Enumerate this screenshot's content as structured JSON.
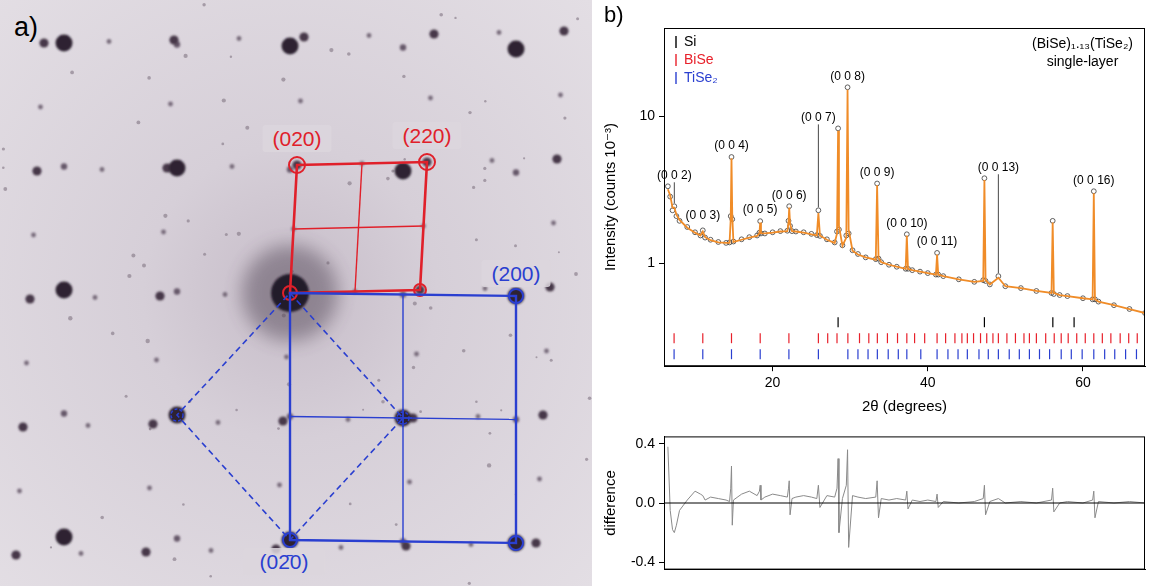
{
  "panel_a": {
    "label": "a)",
    "spot_labels": [
      {
        "text": "(020)",
        "color": "#e0202a"
      },
      {
        "text": "(220)",
        "color": "#e0202a"
      },
      {
        "text": "(200)",
        "color": "#2a3fd0"
      },
      {
        "text": "(02̄0)",
        "color": "#2a3fd0"
      }
    ]
  },
  "chart_data": [
    {
      "type": "scatter",
      "panel_label": "b)",
      "title": "(BiSe)₁.₁₃(TiSe₂)",
      "subtitle": "single-layer",
      "x_label": "2θ (degrees)",
      "y_label": "Intensity (counts 10⁻³)",
      "x": [
        6.5,
        6.8,
        7.1,
        7.33,
        7.6,
        8,
        9,
        10,
        10.7,
        11,
        11.3,
        12,
        13,
        14,
        14.45,
        14.6,
        14.7,
        14.8,
        14.95,
        16,
        17,
        18,
        18.3,
        18.4,
        18.5,
        19,
        20,
        21,
        21.9,
        22.05,
        22.14,
        22.25,
        22.5,
        23,
        24,
        25,
        25.7,
        25.9,
        26.1,
        27,
        28,
        28.3,
        28.44,
        28.55,
        29,
        29.5,
        29.66,
        29.8,
        30.3,
        31,
        32,
        33.3,
        33.47,
        33.65,
        34,
        35,
        36,
        37.15,
        37.3,
        37.45,
        38,
        39,
        40,
        41.05,
        41.2,
        41.35,
        42,
        44,
        46,
        47.15,
        47.3,
        47.45,
        48,
        49.1,
        50,
        52,
        54,
        55.95,
        56.1,
        56.25,
        57,
        58,
        60,
        61.25,
        61.4,
        61.55,
        62,
        64,
        66,
        68
      ],
      "series": [
        {
          "type": "scatter",
          "marker": "circle",
          "color": "#3a3a3a",
          "values": [
            3.35,
            2.85,
            2.3,
            2.45,
            2.1,
            1.95,
            1.77,
            1.63,
            1.55,
            1.68,
            1.5,
            1.45,
            1.4,
            1.38,
            1.39,
            2.1,
            5.3,
            2.0,
            1.41,
            1.46,
            1.51,
            1.55,
            1.62,
            1.94,
            1.6,
            1.6,
            1.63,
            1.66,
            1.67,
            1.95,
            2.45,
            1.8,
            1.66,
            1.65,
            1.63,
            1.59,
            1.56,
            2.3,
            1.54,
            1.46,
            1.39,
            1.65,
            8.3,
            1.7,
            1.33,
            1.55,
            15.8,
            1.6,
            1.23,
            1.16,
            1.1,
            1.07,
            3.5,
            1.08,
            1.02,
            0.98,
            0.95,
            0.92,
            1.58,
            0.92,
            0.9,
            0.88,
            0.86,
            0.84,
            1.18,
            0.84,
            0.82,
            0.78,
            0.75,
            0.77,
            3.8,
            0.76,
            0.72,
            0.82,
            0.7,
            0.68,
            0.65,
            0.63,
            1.95,
            0.62,
            0.61,
            0.6,
            0.58,
            0.57,
            3.1,
            0.57,
            0.55,
            0.52,
            0.49,
            0.46
          ]
        },
        {
          "type": "line",
          "line_style": "solid",
          "color": "#f08c28",
          "values": [
            3.2,
            2.9,
            2.4,
            2.4,
            2.15,
            1.98,
            1.75,
            1.62,
            1.55,
            1.65,
            1.51,
            1.44,
            1.39,
            1.38,
            1.38,
            2.0,
            5.2,
            2.1,
            1.4,
            1.45,
            1.5,
            1.54,
            1.6,
            1.9,
            1.61,
            1.6,
            1.62,
            1.65,
            1.66,
            1.9,
            2.4,
            1.85,
            1.66,
            1.65,
            1.62,
            1.58,
            1.55,
            2.2,
            1.55,
            1.45,
            1.38,
            1.6,
            8.0,
            1.8,
            1.32,
            1.5,
            15.2,
            1.7,
            1.22,
            1.15,
            1.1,
            1.06,
            3.4,
            1.1,
            1.02,
            0.98,
            0.95,
            0.92,
            1.55,
            0.92,
            0.9,
            0.88,
            0.86,
            0.84,
            1.15,
            0.84,
            0.82,
            0.78,
            0.75,
            0.76,
            3.7,
            0.77,
            0.72,
            0.8,
            0.7,
            0.68,
            0.65,
            0.63,
            1.9,
            0.63,
            0.61,
            0.6,
            0.58,
            0.57,
            3.0,
            0.57,
            0.55,
            0.52,
            0.49,
            0.46
          ]
        }
      ],
      "reflections": [
        {
          "name": "Si",
          "color": "#000000",
          "positions": [
            28.44,
            47.3,
            56.12,
            58.86
          ]
        },
        {
          "name": "BiSe",
          "color": "#e8202a",
          "positions": [
            7.3,
            11.0,
            14.7,
            18.4,
            22.1,
            25.9,
            27.1,
            28.3,
            29.7,
            31.2,
            32.4,
            33.5,
            34.8,
            36.1,
            37.3,
            38.3,
            39.6,
            41.2,
            42.3,
            43.5,
            44.4,
            45.1,
            45.9,
            46.8,
            47.6,
            48.4,
            49.1,
            50.2,
            51.3,
            52.4,
            53.1,
            54.0,
            55.2,
            56.3,
            57.2,
            58.1,
            59.2,
            60.3,
            61.4,
            62.5,
            63.6,
            64.8,
            65.9,
            67.0
          ]
        },
        {
          "name": "TiSe₂",
          "color": "#2a3fd0",
          "positions": [
            7.3,
            11.0,
            14.7,
            18.4,
            22.1,
            25.9,
            29.7,
            31.0,
            32.3,
            33.5,
            34.9,
            36.2,
            37.3,
            39.1,
            41.2,
            42.6,
            43.9,
            45.1,
            46.6,
            47.8,
            49.1,
            50.5,
            51.8,
            53.1,
            54.4,
            55.7,
            57.2,
            58.5,
            59.9,
            61.4,
            62.8,
            64.1,
            65.5,
            66.9
          ]
        }
      ],
      "peak_labels": [
        {
          "label": "(0 0 2)",
          "x": 7.33
        },
        {
          "label": "(0 0 3)",
          "x": 11
        },
        {
          "label": "(0 0 4)",
          "x": 14.7
        },
        {
          "label": "(0 0 5)",
          "x": 18.4
        },
        {
          "label": "(0 0 6)",
          "x": 22.14
        },
        {
          "label": "(0 0 7)",
          "x": 25.9
        },
        {
          "label": "(0 0 8)",
          "x": 29.66
        },
        {
          "label": "(0 0 9)",
          "x": 33.47
        },
        {
          "label": "(0 0 10)",
          "x": 37.3
        },
        {
          "label": "(0 0 11)",
          "x": 41.2
        },
        {
          "label": "(0 0 13)",
          "x": 49.1
        },
        {
          "label": "(0 0 16)",
          "x": 61.4
        }
      ],
      "legend": "upper left",
      "log": "y",
      "xlim": [
        6,
        68
      ],
      "xticks": [
        20,
        40,
        60
      ],
      "ylim": [
        0.2,
        40
      ],
      "yticks": [
        1,
        10
      ],
      "grid": false
    },
    {
      "type": "line",
      "y_label": "difference",
      "x": [
        6.5,
        6.8,
        7.1,
        7.33,
        7.6,
        8,
        9,
        10,
        10.7,
        11,
        11.3,
        12,
        13,
        14,
        14.45,
        14.6,
        14.7,
        14.8,
        14.95,
        16,
        17,
        18,
        18.3,
        18.4,
        18.5,
        19,
        20,
        21,
        21.9,
        22.05,
        22.14,
        22.25,
        22.5,
        23,
        24,
        25,
        25.7,
        25.9,
        26.1,
        27,
        28,
        28.3,
        28.44,
        28.55,
        29,
        29.5,
        29.66,
        29.8,
        30.3,
        31,
        32,
        33.3,
        33.47,
        33.65,
        34,
        35,
        36,
        37.15,
        37.3,
        37.45,
        38,
        39,
        40,
        41.05,
        41.2,
        41.35,
        42,
        44,
        46,
        47.15,
        47.3,
        47.45,
        48,
        49.1,
        50,
        52,
        54,
        55.95,
        56.1,
        56.25,
        57,
        58,
        60,
        61.25,
        61.4,
        61.55,
        62,
        64,
        66,
        68
      ],
      "values": [
        0.38,
        -0.05,
        -0.18,
        -0.2,
        -0.15,
        -0.05,
        0.02,
        0.08,
        0.06,
        0.05,
        0.02,
        0.04,
        0.03,
        0.02,
        0.01,
        0.1,
        0.25,
        -0.15,
        0.02,
        0.06,
        0.08,
        0.05,
        0.08,
        0.12,
        0.02,
        0.04,
        0.06,
        0.05,
        0.04,
        0.1,
        0.15,
        -0.08,
        0.03,
        0.04,
        0.05,
        0.04,
        0.03,
        0.12,
        -0.03,
        0.05,
        0.04,
        0.1,
        0.3,
        -0.2,
        0.03,
        0.12,
        0.36,
        -0.3,
        0.05,
        0.04,
        0.03,
        0.04,
        0.15,
        -0.1,
        0.03,
        0.02,
        0.03,
        0.02,
        0.08,
        -0.04,
        0.02,
        0.01,
        0.02,
        0.01,
        0.06,
        -0.03,
        0.01,
        0,
        0.01,
        0.03,
        0.12,
        -0.08,
        0.01,
        0.03,
        0,
        0.01,
        0,
        0.02,
        0.1,
        -0.06,
        0,
        0.01,
        0,
        0.02,
        0.08,
        -0.1,
        0.01,
        0,
        0.01,
        0
      ],
      "color": "#8a8a8a",
      "xlim": [
        6,
        68
      ],
      "ylim": [
        -0.45,
        0.45
      ],
      "yticks": [
        -0.4,
        {
          "value": 0,
          "label": "0.0"
        },
        0.4
      ],
      "tick_labels": "y",
      "grid": false
    }
  ]
}
